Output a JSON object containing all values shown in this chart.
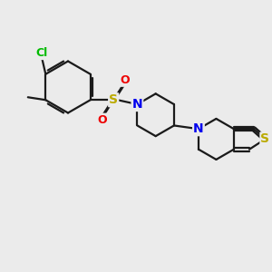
{
  "background_color": "#ebebeb",
  "bond_color": "#1a1a1a",
  "bond_width": 1.6,
  "atom_colors": {
    "Cl": "#00bb00",
    "N": "#0000ee",
    "S": "#bbaa00",
    "O": "#ee0000",
    "C": "#1a1a1a"
  },
  "font_size_atom": 9.5,
  "figsize": [
    3.0,
    3.0
  ],
  "dpi": 100,
  "xlim": [
    0,
    10
  ],
  "ylim": [
    0,
    10
  ]
}
